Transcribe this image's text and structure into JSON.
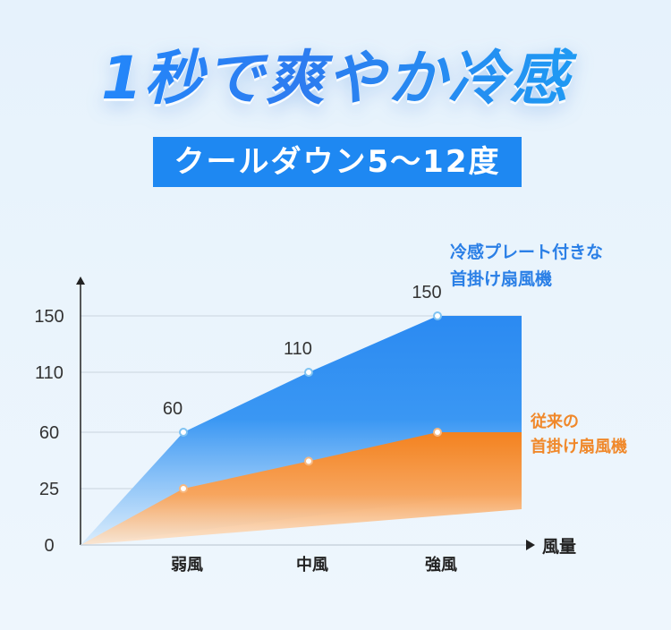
{
  "headline": "1秒で爽やか冷感",
  "badge": "クールダウン5～12度",
  "chart_data": {
    "type": "area",
    "categories": [
      "弱風",
      "中風",
      "強風"
    ],
    "xlabel": "風量",
    "ylabel": "",
    "yticks": [
      0,
      25,
      60,
      110,
      150
    ],
    "series": [
      {
        "name": "冷感プレート付きな首掛け扇風機",
        "name_lines": [
          "冷感プレート付きな",
          "首掛け扇風機"
        ],
        "color": "#2a8af0",
        "values": [
          60,
          110,
          150
        ],
        "labels": [
          "60",
          "110",
          "150"
        ]
      },
      {
        "name": "従来の首掛け扇風機",
        "name_lines": [
          "従来の",
          "首掛け扇風機"
        ],
        "color": "#f38a2c",
        "values": [
          25,
          42,
          60
        ]
      }
    ]
  }
}
